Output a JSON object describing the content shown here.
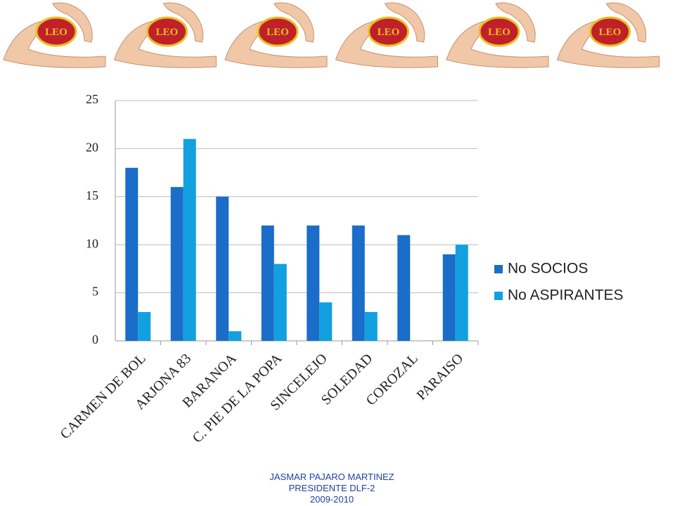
{
  "logo_text": "LEO",
  "footer": [
    "JASMAR PAJARO MARTINEZ",
    "PRESIDENTE DLF-2",
    "2009-2010"
  ],
  "chart_data": {
    "type": "bar",
    "categories": [
      "CARMEN DE BOL",
      "ARJONA 83",
      "BARANOA",
      "C. PIE DE LA POPA",
      "SINCELEJO",
      "SOLEDAD",
      "COROZAL",
      "PARAISO"
    ],
    "series": [
      {
        "name": "No SOCIOS",
        "color": "#1a6dc8",
        "values": [
          18,
          16,
          15,
          12,
          12,
          12,
          11,
          9
        ]
      },
      {
        "name": "No ASPIRANTES",
        "color": "#12a0e0",
        "values": [
          3,
          21,
          1,
          8,
          4,
          3,
          0,
          10
        ]
      }
    ],
    "ylim": [
      0,
      25
    ],
    "yticks": [
      0,
      5,
      10,
      15,
      20,
      25
    ],
    "grid": true,
    "legend": "right"
  }
}
